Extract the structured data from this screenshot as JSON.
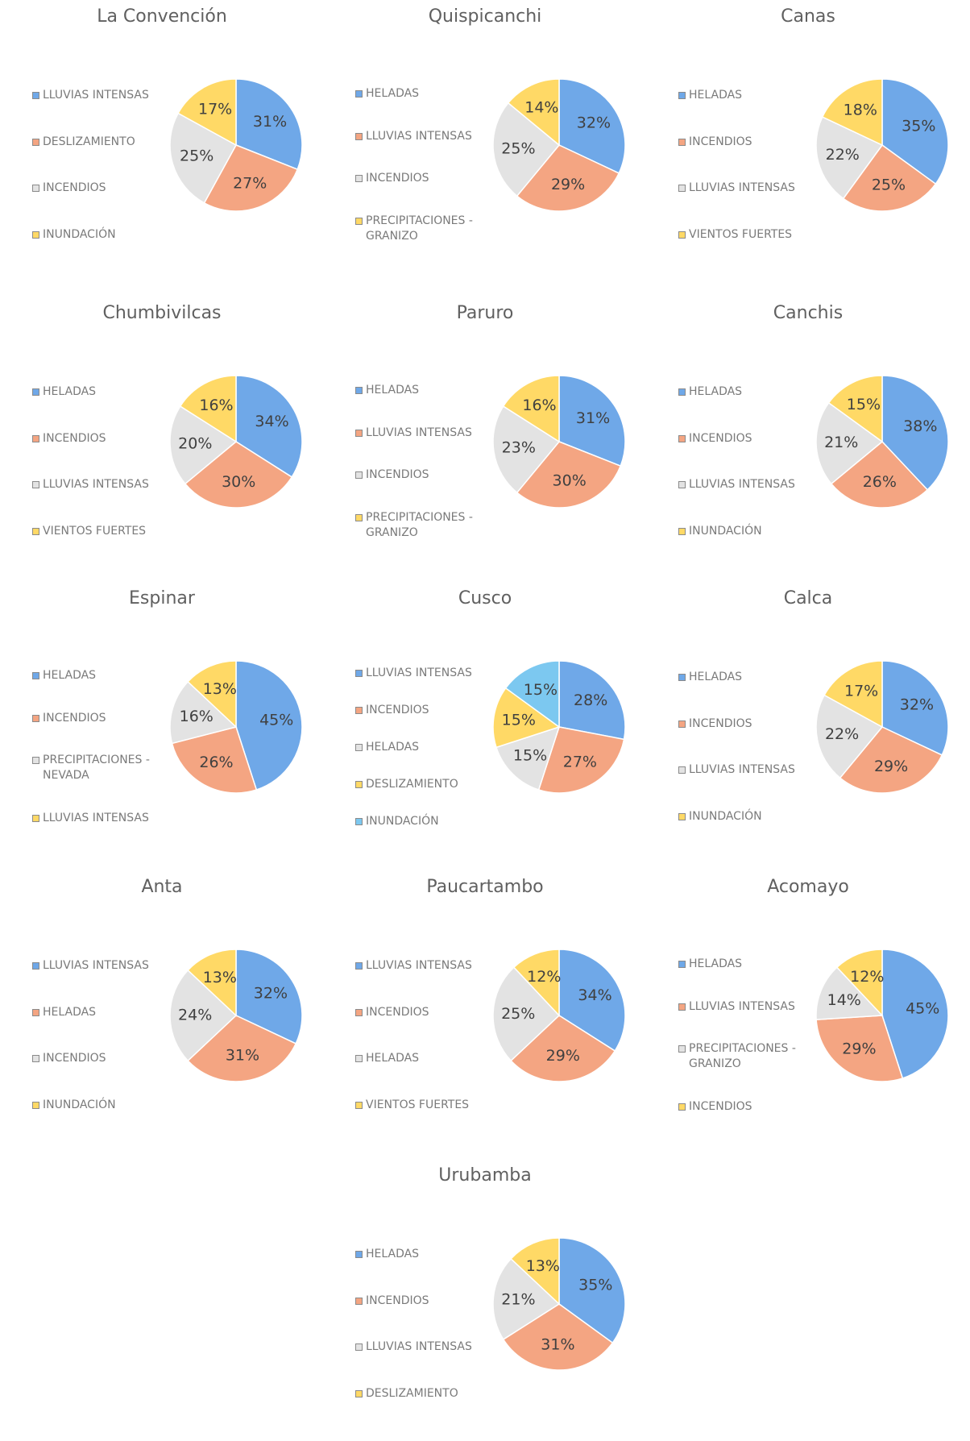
{
  "chart_data": [
    {
      "type": "pie",
      "title": "La Convención",
      "categories": [
        "LLUVIAS INTENSAS",
        "DESLIZAMIENTO",
        "INCENDIOS",
        "INUNDACIÓN"
      ],
      "values": [
        31,
        27,
        25,
        17
      ],
      "value_labels": [
        "31%",
        "27%",
        "25%",
        "17%"
      ],
      "colors": [
        "#6fa8e8",
        "#f4a582",
        "#e3e3e3",
        "#ffd966"
      ]
    },
    {
      "type": "pie",
      "title": "Quispicanchi",
      "categories": [
        "HELADAS",
        "LLUVIAS INTENSAS",
        "INCENDIOS",
        "PRECIPITACIONES - GRANIZO"
      ],
      "values": [
        32,
        29,
        25,
        14
      ],
      "value_labels": [
        "32%",
        "29%",
        "25%",
        "14%"
      ],
      "colors": [
        "#6fa8e8",
        "#f4a582",
        "#e3e3e3",
        "#ffd966"
      ]
    },
    {
      "type": "pie",
      "title": "Canas",
      "categories": [
        "HELADAS",
        "INCENDIOS",
        "LLUVIAS INTENSAS",
        "VIENTOS FUERTES"
      ],
      "values": [
        35,
        25,
        22,
        18
      ],
      "value_labels": [
        "35%",
        "25%",
        "22%",
        "18%"
      ],
      "colors": [
        "#6fa8e8",
        "#f4a582",
        "#e3e3e3",
        "#ffd966"
      ]
    },
    {
      "type": "pie",
      "title": "Chumbivilcas",
      "categories": [
        "HELADAS",
        "INCENDIOS",
        "LLUVIAS INTENSAS",
        "VIENTOS FUERTES"
      ],
      "values": [
        34,
        30,
        20,
        16
      ],
      "value_labels": [
        "34%",
        "30%",
        "20%",
        "16%"
      ],
      "colors": [
        "#6fa8e8",
        "#f4a582",
        "#e3e3e3",
        "#ffd966"
      ]
    },
    {
      "type": "pie",
      "title": "Paruro",
      "categories": [
        "HELADAS",
        "LLUVIAS INTENSAS",
        "INCENDIOS",
        "PRECIPITACIONES - GRANIZO"
      ],
      "values": [
        31,
        30,
        23,
        16
      ],
      "value_labels": [
        "31%",
        "30%",
        "23%",
        "16%"
      ],
      "colors": [
        "#6fa8e8",
        "#f4a582",
        "#e3e3e3",
        "#ffd966"
      ]
    },
    {
      "type": "pie",
      "title": "Canchis",
      "categories": [
        "HELADAS",
        "INCENDIOS",
        "LLUVIAS INTENSAS",
        "INUNDACIÓN"
      ],
      "values": [
        38,
        26,
        21,
        15
      ],
      "value_labels": [
        "38%",
        "26%",
        "21%",
        "15%"
      ],
      "colors": [
        "#6fa8e8",
        "#f4a582",
        "#e3e3e3",
        "#ffd966"
      ]
    },
    {
      "type": "pie",
      "title": "Espinar",
      "categories": [
        "HELADAS",
        "INCENDIOS",
        "PRECIPITACIONES - NEVADA",
        "LLUVIAS INTENSAS"
      ],
      "values": [
        45,
        26,
        16,
        13
      ],
      "value_labels": [
        "45%",
        "26%",
        "16%",
        "13%"
      ],
      "colors": [
        "#6fa8e8",
        "#f4a582",
        "#e3e3e3",
        "#ffd966"
      ]
    },
    {
      "type": "pie",
      "title": "Cusco",
      "categories": [
        "LLUVIAS INTENSAS",
        "INCENDIOS",
        "HELADAS",
        "DESLIZAMIENTO",
        "INUNDACIÓN"
      ],
      "values": [
        28,
        27,
        15,
        15,
        15
      ],
      "value_labels": [
        "28%",
        "27%",
        "15%",
        "15%",
        "15%"
      ],
      "colors": [
        "#6fa8e8",
        "#f4a582",
        "#e3e3e3",
        "#ffd966",
        "#7cc8f0"
      ]
    },
    {
      "type": "pie",
      "title": "Calca",
      "categories": [
        "HELADAS",
        "INCENDIOS",
        "LLUVIAS INTENSAS",
        "INUNDACIÓN"
      ],
      "values": [
        32,
        29,
        22,
        17
      ],
      "value_labels": [
        "32%",
        "29%",
        "22%",
        "17%"
      ],
      "colors": [
        "#6fa8e8",
        "#f4a582",
        "#e3e3e3",
        "#ffd966"
      ]
    },
    {
      "type": "pie",
      "title": "Anta",
      "categories": [
        "LLUVIAS INTENSAS",
        "HELADAS",
        "INCENDIOS",
        "INUNDACIÓN"
      ],
      "values": [
        32,
        31,
        24,
        13
      ],
      "value_labels": [
        "32%",
        "31%",
        "24%",
        "13%"
      ],
      "colors": [
        "#6fa8e8",
        "#f4a582",
        "#e3e3e3",
        "#ffd966"
      ]
    },
    {
      "type": "pie",
      "title": "Paucartambo",
      "categories": [
        "LLUVIAS INTENSAS",
        "INCENDIOS",
        "HELADAS",
        "VIENTOS FUERTES"
      ],
      "values": [
        34,
        29,
        25,
        12
      ],
      "value_labels": [
        "34%",
        "29%",
        "25%",
        "12%"
      ],
      "colors": [
        "#6fa8e8",
        "#f4a582",
        "#e3e3e3",
        "#ffd966"
      ]
    },
    {
      "type": "pie",
      "title": "Acomayo",
      "categories": [
        "HELADAS",
        "LLUVIAS INTENSAS",
        "PRECIPITACIONES - GRANIZO",
        "INCENDIOS"
      ],
      "values": [
        45,
        29,
        14,
        12
      ],
      "value_labels": [
        "45%",
        "29%",
        "14%",
        "12%"
      ],
      "colors": [
        "#6fa8e8",
        "#f4a582",
        "#e3e3e3",
        "#ffd966"
      ]
    },
    {
      "type": "pie",
      "title": "Urubamba",
      "categories": [
        "HELADAS",
        "INCENDIOS",
        "LLUVIAS INTENSAS",
        "DESLIZAMIENTO"
      ],
      "values": [
        35,
        31,
        21,
        13
      ],
      "value_labels": [
        "35%",
        "31%",
        "21%",
        "13%"
      ],
      "colors": [
        "#6fa8e8",
        "#f4a582",
        "#e3e3e3",
        "#ffd966"
      ]
    }
  ]
}
